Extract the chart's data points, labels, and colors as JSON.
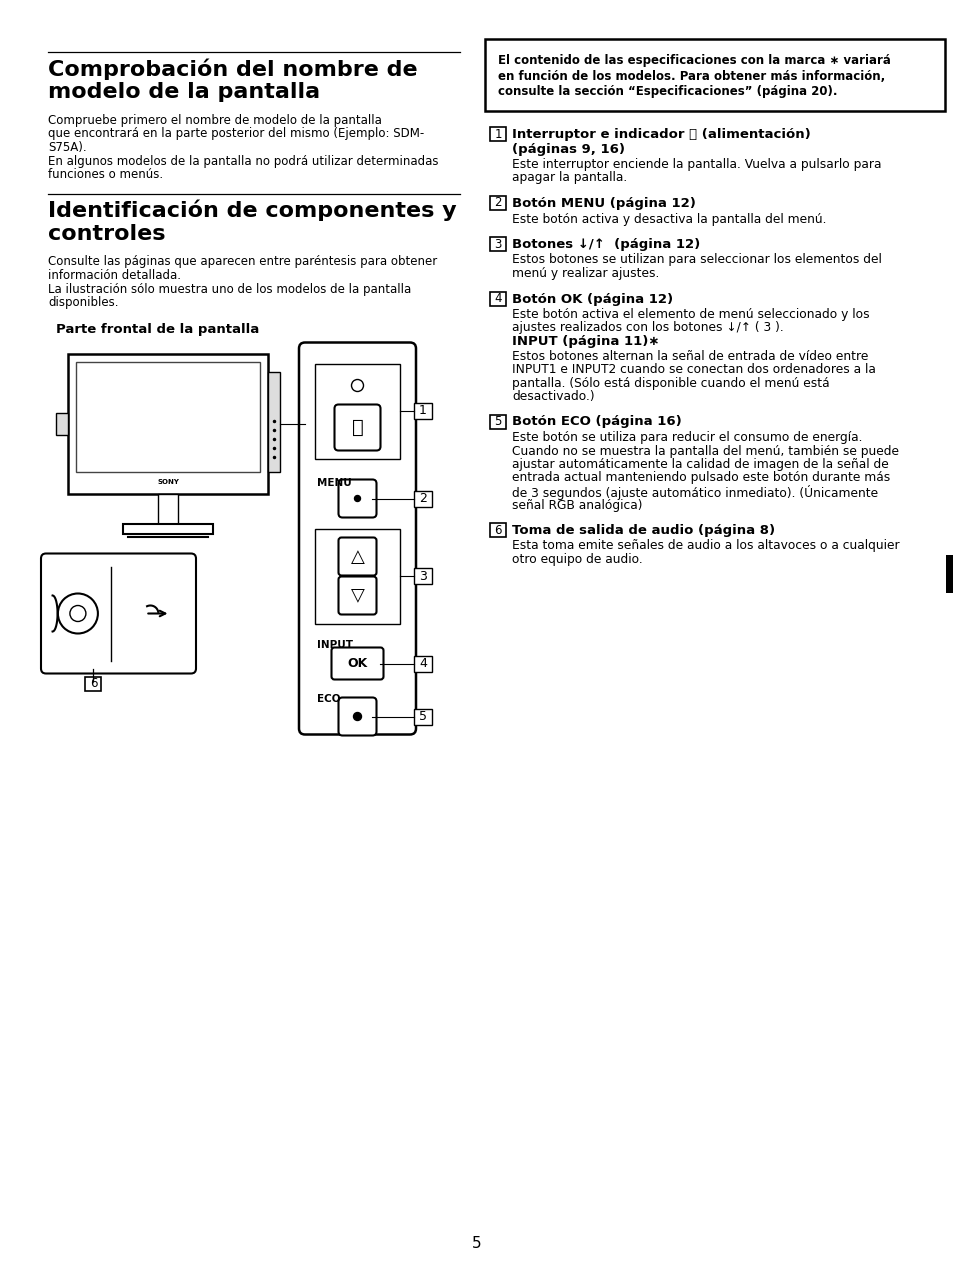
{
  "bg_color": "#ffffff",
  "page_number": "5",
  "left": {
    "sec1_title": [
      "Comprobación del nombre de",
      "modelo de la pantalla"
    ],
    "sec1_body": [
      "Compruebe primero el nombre de modelo de la pantalla",
      "que encontrará en la parte posterior del mismo (Ejemplo: SDM-",
      "S75A).",
      "En algunos modelos de la pantalla no podrá utilizar determinadas",
      "funciones o menús."
    ],
    "sec2_title": [
      "Identificación de componentes y",
      "controles"
    ],
    "sec2_body": [
      "Consulte las páginas que aparecen entre paréntesis para obtener",
      "información detallada.",
      "La ilustración sólo muestra uno de los modelos de la pantalla",
      "disponibles."
    ],
    "diag_label": "Parte frontal de la pantalla"
  },
  "right": {
    "notice": [
      "El contenido de las especificaciones con la marca ∗ variará",
      "en función de los modelos. Para obtener más información,",
      "consulte la sección “Especificaciones” (página 20)."
    ],
    "items": [
      {
        "num": "1",
        "title": [
          "Interruptor e indicador ⏻ (alimentación)",
          "(páginas 9, 16)"
        ],
        "body": [
          "Este interruptor enciende la pantalla. Vuelva a pulsarlo para",
          "apagar la pantalla."
        ],
        "extra_bold": null,
        "extra_body": []
      },
      {
        "num": "2",
        "title": [
          "Botón MENU (página 12)"
        ],
        "body": [
          "Este botón activa y desactiva la pantalla del menú."
        ],
        "extra_bold": null,
        "extra_body": []
      },
      {
        "num": "3",
        "title": [
          "Botones ↓/↑  (página 12)"
        ],
        "body": [
          "Estos botones se utilizan para seleccionar los elementos del",
          "menú y realizar ajustes."
        ],
        "extra_bold": null,
        "extra_body": []
      },
      {
        "num": "4",
        "title": [
          "Botón OK (página 12)"
        ],
        "body": [
          "Este botón activa el elemento de menú seleccionado y los",
          "ajustes realizados con los botones ↓/↑ ( 3 )."
        ],
        "extra_bold": "INPUT (página 11)∗",
        "extra_body": [
          "Estos botones alternan la señal de entrada de vídeo entre",
          "INPUT1 e INPUT2 cuando se conectan dos ordenadores a la",
          "pantalla. (Sólo está disponible cuando el menú está",
          "desactivado.)"
        ]
      },
      {
        "num": "5",
        "title": [
          "Botón ECO (página 16)"
        ],
        "body": [
          "Este botón se utiliza para reducir el consumo de energía.",
          "Cuando no se muestra la pantalla del menú, también se puede",
          "ajustar automáticamente la calidad de imagen de la señal de",
          "entrada actual manteniendo pulsado este botón durante más",
          "de 3 segundos (ajuste automático inmediato). (Únicamente",
          "señal RGB analógica)"
        ],
        "extra_bold": null,
        "extra_body": []
      },
      {
        "num": "6",
        "title": [
          "Toma de salida de audio (página 8)"
        ],
        "body": [
          "Esta toma emite señales de audio a los altavoces o a cualquier",
          "otro equipo de audio."
        ],
        "extra_bold": null,
        "extra_body": []
      }
    ]
  }
}
